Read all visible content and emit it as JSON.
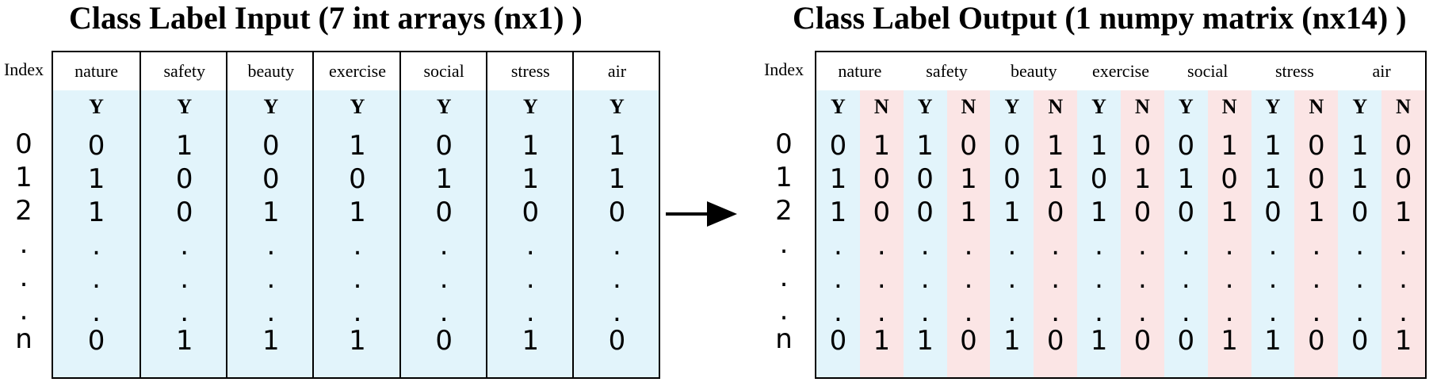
{
  "left": {
    "title": "Class Label Input (7 int arrays (nx1) )",
    "index_label": "Index",
    "index_values": [
      "0",
      "1",
      "2",
      ".",
      ".",
      ".",
      "n"
    ],
    "columns": [
      {
        "name": "nature",
        "flag": "Y",
        "values": [
          "0",
          "1",
          "1",
          ".",
          ".",
          ".",
          "0"
        ]
      },
      {
        "name": "safety",
        "flag": "Y",
        "values": [
          "1",
          "0",
          "0",
          ".",
          ".",
          ".",
          "1"
        ]
      },
      {
        "name": "beauty",
        "flag": "Y",
        "values": [
          "0",
          "0",
          "1",
          ".",
          ".",
          ".",
          "1"
        ]
      },
      {
        "name": "exercise",
        "flag": "Y",
        "values": [
          "1",
          "0",
          "1",
          ".",
          ".",
          ".",
          "1"
        ]
      },
      {
        "name": "social",
        "flag": "Y",
        "values": [
          "0",
          "1",
          "0",
          ".",
          ".",
          ".",
          "0"
        ]
      },
      {
        "name": "stress",
        "flag": "Y",
        "values": [
          "1",
          "1",
          "0",
          ".",
          ".",
          ".",
          "1"
        ]
      },
      {
        "name": "air",
        "flag": "Y",
        "values": [
          "1",
          "1",
          "0",
          ".",
          ".",
          ".",
          "0"
        ]
      }
    ]
  },
  "right": {
    "title": "Class Label Output (1 numpy matrix (nx14) )",
    "index_label": "Index",
    "index_values": [
      "0",
      "1",
      "2",
      ".",
      ".",
      ".",
      "n"
    ],
    "groups": [
      "nature",
      "safety",
      "beauty",
      "exercise",
      "social",
      "stress",
      "air"
    ],
    "columns": [
      {
        "flag": "Y",
        "values": [
          "0",
          "1",
          "1",
          ".",
          ".",
          ".",
          "0"
        ]
      },
      {
        "flag": "N",
        "values": [
          "1",
          "0",
          "0",
          ".",
          ".",
          ".",
          "1"
        ]
      },
      {
        "flag": "Y",
        "values": [
          "1",
          "0",
          "0",
          ".",
          ".",
          ".",
          "1"
        ]
      },
      {
        "flag": "N",
        "values": [
          "0",
          "1",
          "1",
          ".",
          ".",
          ".",
          "0"
        ]
      },
      {
        "flag": "Y",
        "values": [
          "0",
          "0",
          "1",
          ".",
          ".",
          ".",
          "1"
        ]
      },
      {
        "flag": "N",
        "values": [
          "1",
          "1",
          "0",
          ".",
          ".",
          ".",
          "0"
        ]
      },
      {
        "flag": "Y",
        "values": [
          "1",
          "0",
          "1",
          ".",
          ".",
          ".",
          "1"
        ]
      },
      {
        "flag": "N",
        "values": [
          "0",
          "1",
          "0",
          ".",
          ".",
          ".",
          "0"
        ]
      },
      {
        "flag": "Y",
        "values": [
          "0",
          "1",
          "0",
          ".",
          ".",
          ".",
          "0"
        ]
      },
      {
        "flag": "N",
        "values": [
          "1",
          "0",
          "1",
          ".",
          ".",
          ".",
          "1"
        ]
      },
      {
        "flag": "Y",
        "values": [
          "1",
          "1",
          "0",
          ".",
          ".",
          ".",
          "1"
        ]
      },
      {
        "flag": "N",
        "values": [
          "0",
          "0",
          "1",
          ".",
          ".",
          ".",
          "0"
        ]
      },
      {
        "flag": "Y",
        "values": [
          "1",
          "1",
          "0",
          ".",
          ".",
          ".",
          "0"
        ]
      },
      {
        "flag": "N",
        "values": [
          "0",
          "0",
          "1",
          ".",
          ".",
          ".",
          "1"
        ]
      }
    ]
  },
  "colors": {
    "yes_column": "#e2f4fb",
    "no_column": "#fbe5e5",
    "line": "#000000"
  }
}
